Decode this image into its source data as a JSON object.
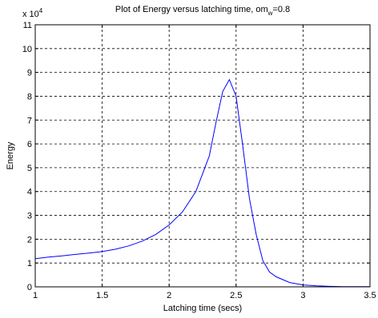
{
  "chart_data": {
    "type": "line",
    "title_main": "Plot of Energy versus latching time, om",
    "title_sub": "w",
    "title_tail": "=0.8",
    "xlabel": "Latching time (secs)",
    "ylabel": "Energy",
    "y_multiplier_base": "x 10",
    "y_multiplier_exp": "4",
    "xlim": [
      1,
      3.5
    ],
    "ylim": [
      0,
      11
    ],
    "grid": true,
    "x_ticks": [
      "1",
      "1.5",
      "2",
      "2.5",
      "3",
      "3.5"
    ],
    "y_ticks": [
      "0",
      "1",
      "2",
      "3",
      "4",
      "5",
      "6",
      "7",
      "8",
      "9",
      "10",
      "11"
    ],
    "line_color": "#0000ff",
    "series": [
      {
        "x": [
          1.0,
          1.1,
          1.2,
          1.3,
          1.4,
          1.5,
          1.6,
          1.7,
          1.8,
          1.9,
          2.0,
          2.1,
          2.2,
          2.3,
          2.35,
          2.4,
          2.45,
          2.5,
          2.55,
          2.6,
          2.65,
          2.7,
          2.75,
          2.8,
          2.9,
          3.0,
          3.1,
          3.2,
          3.3,
          3.4,
          3.5
        ],
        "y": [
          1.18,
          1.25,
          1.3,
          1.36,
          1.42,
          1.48,
          1.58,
          1.72,
          1.92,
          2.2,
          2.6,
          3.15,
          4.0,
          5.5,
          6.9,
          8.2,
          8.7,
          8.0,
          5.9,
          3.7,
          2.2,
          1.1,
          0.62,
          0.42,
          0.18,
          0.08,
          0.04,
          0.02,
          0.01,
          0.01,
          0.01
        ]
      }
    ]
  }
}
